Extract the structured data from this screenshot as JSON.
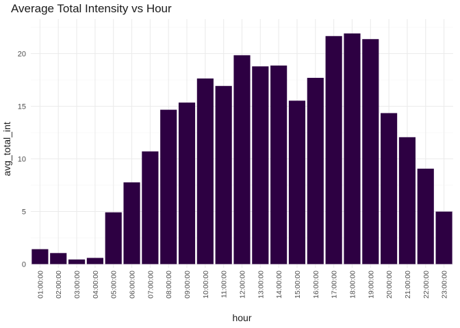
{
  "chart_data": {
    "type": "bar",
    "title": "Average Total Intensity vs Hour",
    "xlabel": "hour",
    "ylabel": "avg_total_int",
    "categories": [
      "01:00:00",
      "02:00:00",
      "03:00:00",
      "04:00:00",
      "05:00:00",
      "06:00:00",
      "07:00:00",
      "08:00:00",
      "09:00:00",
      "10:00:00",
      "11:00:00",
      "12:00:00",
      "13:00:00",
      "14:00:00",
      "15:00:00",
      "16:00:00",
      "17:00:00",
      "18:00:00",
      "19:00:00",
      "20:00:00",
      "21:00:00",
      "22:00:00",
      "23:00:00"
    ],
    "values": [
      1.42,
      1.05,
      0.44,
      0.59,
      4.92,
      7.77,
      10.71,
      14.67,
      15.35,
      17.64,
      16.93,
      19.85,
      18.79,
      18.87,
      15.53,
      17.7,
      21.67,
      21.92,
      21.38,
      14.35,
      12.06,
      9.07,
      4.99
    ],
    "ylim": [
      0,
      23.3
    ],
    "yticks": [
      0,
      5,
      10,
      15,
      20
    ],
    "bar_color": "#2d0042",
    "grid": true,
    "grid_color": "#ebebeb",
    "legend": "none"
  }
}
